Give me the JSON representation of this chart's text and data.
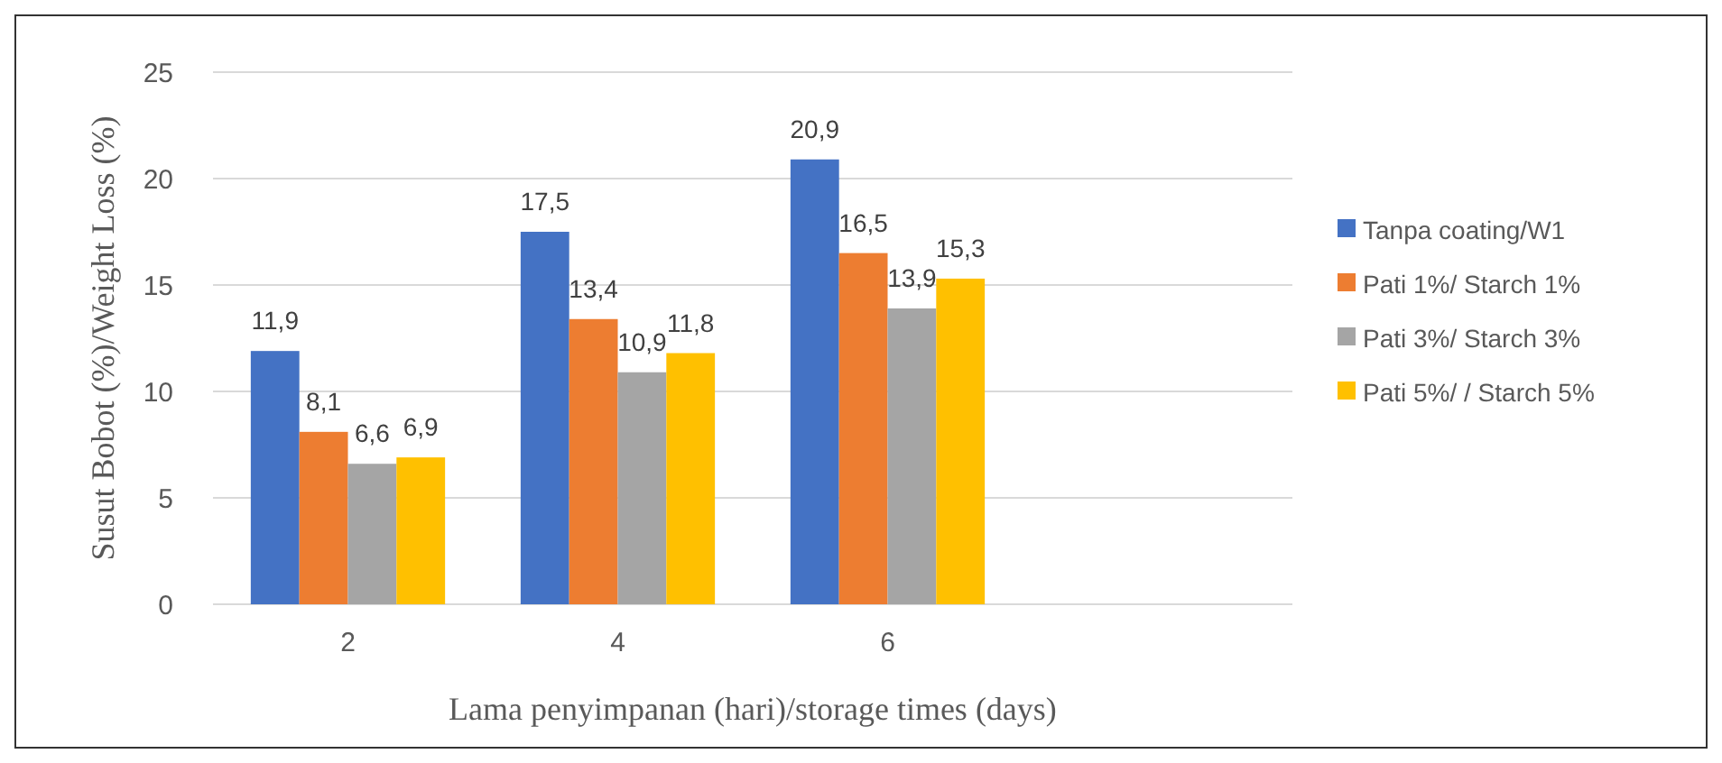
{
  "chart_data": {
    "type": "bar",
    "xlabel": "Lama penyimpanan (hari)/storage times (days)",
    "ylabel": "Susut Bobot (%)/Weight Loss (%)",
    "categories": [
      "2",
      "4",
      "6",
      null
    ],
    "series": [
      {
        "name": "Tanpa coating/W1",
        "color": "#4472c4",
        "values": [
          11.9,
          17.5,
          20.9,
          null
        ],
        "value_labels": [
          "11,9",
          "17,5",
          "20,9",
          null
        ]
      },
      {
        "name": "Pati 1%/ Starch 1%",
        "color": "#ed7d31",
        "values": [
          8.1,
          13.4,
          16.5,
          null
        ],
        "value_labels": [
          "8,1",
          "13,4",
          "16,5",
          null
        ]
      },
      {
        "name": "Pati 3%/ Starch 3%",
        "color": "#a5a5a5",
        "values": [
          6.6,
          10.9,
          13.9,
          null
        ],
        "value_labels": [
          "6,6",
          "10,9",
          "13,9",
          null
        ]
      },
      {
        "name": "Pati 5%/ / Starch 5%",
        "color": "#ffc000",
        "values": [
          6.9,
          11.8,
          15.3,
          null
        ],
        "value_labels": [
          "6,9",
          "11,8",
          "15,3",
          null
        ]
      }
    ],
    "ylim": [
      0,
      25
    ],
    "yticks": [
      0,
      5,
      10,
      15,
      20,
      25
    ],
    "grid": "y",
    "legend": "right"
  }
}
